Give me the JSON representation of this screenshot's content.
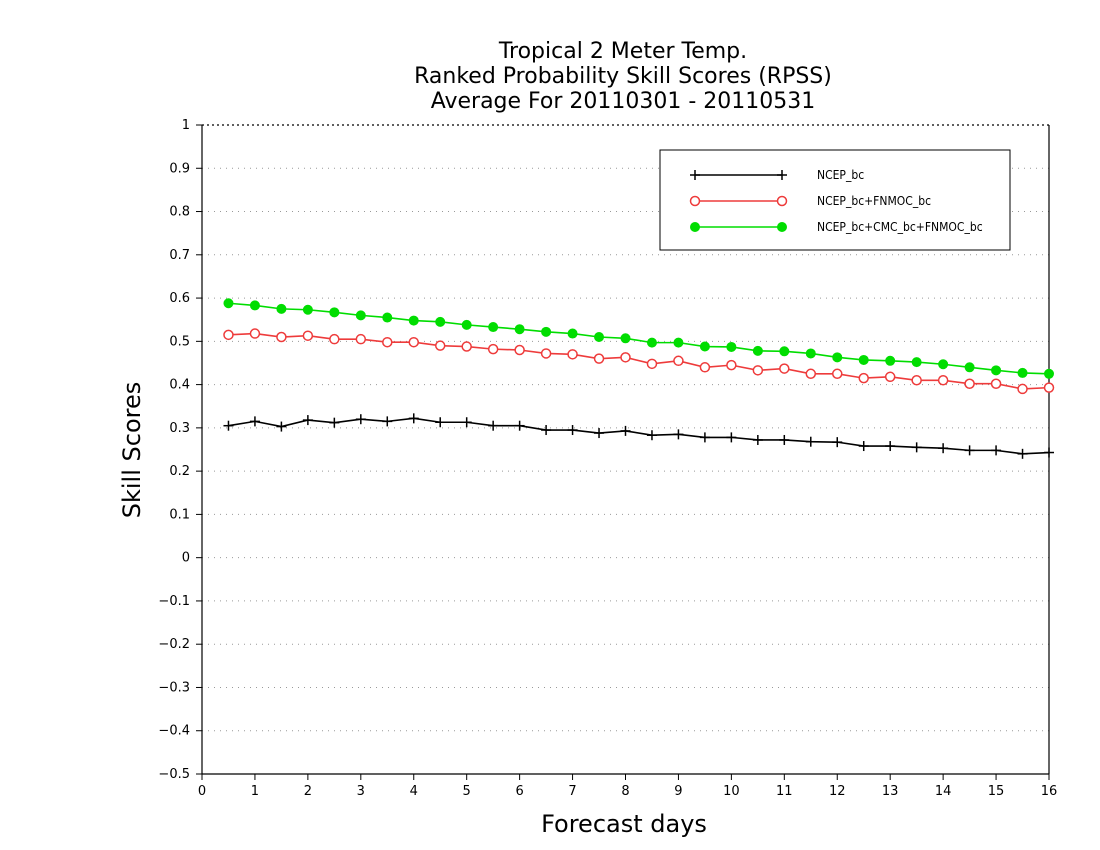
{
  "chart_data": {
    "type": "line",
    "title": [
      "Tropical 2 Meter Temp.",
      "Ranked Probability Skill Scores (RPSS)",
      "Average For 20110301 - 20110531"
    ],
    "xlabel": "Forecast days",
    "ylabel": "Skill Scores",
    "xlim": [
      0,
      16
    ],
    "ylim": [
      -0.5,
      1
    ],
    "x_ticks": [
      "0",
      "1",
      "2",
      "3",
      "4",
      "5",
      "6",
      "7",
      "8",
      "9",
      "10",
      "11",
      "12",
      "13",
      "14",
      "15",
      "16"
    ],
    "y_ticks": [
      "−0.5",
      "−0.4",
      "−0.3",
      "−0.2",
      "−0.1",
      "0",
      "0.1",
      "0.2",
      "0.3",
      "0.4",
      "0.5",
      "0.6",
      "0.7",
      "0.8",
      "0.9",
      "1"
    ],
    "y_tick_values": [
      -0.5,
      -0.4,
      -0.3,
      -0.2,
      -0.1,
      0,
      0.1,
      0.2,
      0.3,
      0.4,
      0.5,
      0.6,
      0.7,
      0.8,
      0.9,
      1
    ],
    "grid": true,
    "legend_position": "top-right",
    "x": [
      0.5,
      1,
      1.5,
      2,
      2.5,
      3,
      3.5,
      4,
      4.5,
      5,
      5.5,
      6,
      6.5,
      7,
      7.5,
      8,
      8.5,
      9,
      9.5,
      10,
      10.5,
      11,
      11.5,
      12,
      12.5,
      13,
      13.5,
      14,
      14.5,
      15,
      15.5,
      16
    ],
    "series": [
      {
        "name": "NCEP_bc",
        "color": "#000000",
        "marker": "plus",
        "values": [
          0.305,
          0.315,
          0.303,
          0.318,
          0.312,
          0.32,
          0.315,
          0.322,
          0.313,
          0.313,
          0.305,
          0.305,
          0.295,
          0.295,
          0.288,
          0.293,
          0.283,
          0.285,
          0.278,
          0.278,
          0.272,
          0.272,
          0.268,
          0.267,
          0.258,
          0.258,
          0.255,
          0.253,
          0.248,
          0.248,
          0.24,
          0.243
        ]
      },
      {
        "name": "NCEP_bc+FNMOC_bc",
        "color": "#ee3b3b",
        "marker": "open-circle",
        "values": [
          0.515,
          0.518,
          0.51,
          0.513,
          0.505,
          0.505,
          0.498,
          0.498,
          0.49,
          0.488,
          0.482,
          0.48,
          0.472,
          0.47,
          0.46,
          0.463,
          0.448,
          0.455,
          0.44,
          0.445,
          0.433,
          0.437,
          0.425,
          0.425,
          0.415,
          0.418,
          0.41,
          0.41,
          0.402,
          0.402,
          0.39,
          0.393
        ]
      },
      {
        "name": "NCEP_bc+CMC_bc+FNMOC_bc",
        "color": "#00dd00",
        "marker": "filled-circle",
        "values": [
          0.588,
          0.583,
          0.575,
          0.573,
          0.567,
          0.56,
          0.555,
          0.548,
          0.545,
          0.538,
          0.533,
          0.528,
          0.522,
          0.518,
          0.51,
          0.507,
          0.497,
          0.497,
          0.488,
          0.487,
          0.478,
          0.477,
          0.472,
          0.463,
          0.457,
          0.455,
          0.452,
          0.447,
          0.44,
          0.433,
          0.427,
          0.425
        ]
      }
    ]
  }
}
